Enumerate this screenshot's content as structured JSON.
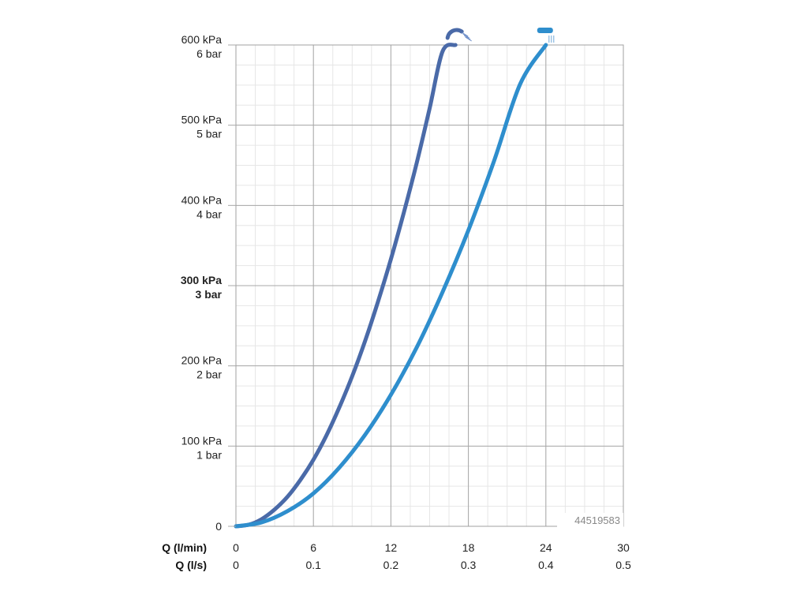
{
  "chart_data": {
    "type": "line",
    "id_label": "44519583",
    "x_axis": {
      "lim": [
        0,
        30
      ],
      "major_ticks": [
        0,
        6,
        12,
        18,
        24,
        30
      ],
      "minor_step": 1.5,
      "labels_primary": [
        "0",
        "6",
        "12",
        "18",
        "24",
        "30"
      ],
      "labels_secondary": [
        "0",
        "0.1",
        "0.2",
        "0.3",
        "0.4",
        "0.5"
      ],
      "title_primary": "Q (l/min)",
      "title_secondary": "Q (l/s)"
    },
    "y_axis": {
      "lim": [
        0,
        600
      ],
      "major_ticks": [
        0,
        100,
        200,
        300,
        400,
        500,
        600
      ],
      "minor_step": 25,
      "labels_primary": [
        "0",
        "100 kPa",
        "200 kPa",
        "300 kPa",
        "400 kPa",
        "500 kPa",
        "600 kPa"
      ],
      "labels_secondary": [
        "",
        "1 bar",
        "2 bar",
        "3 bar",
        "4 bar",
        "5 bar",
        "6 bar"
      ],
      "bold_tick": 300
    },
    "grid": true,
    "series": [
      {
        "icon": "rain-shower-head-icon",
        "color": "#4a6aa8",
        "x": [
          0,
          1,
          2,
          3,
          4,
          5,
          6,
          7,
          8,
          9,
          10,
          11,
          12,
          13,
          14,
          15,
          16,
          17
        ],
        "y": [
          0,
          2,
          9,
          21,
          37,
          58,
          83,
          113,
          148,
          187,
          231,
          280,
          333,
          391,
          453,
          521,
          592,
          600
        ]
      },
      {
        "icon": "hand-shower-icon",
        "color": "#2e8ecd",
        "x": [
          0,
          2,
          4,
          6,
          8,
          10,
          12,
          14,
          16,
          18,
          20,
          22,
          24
        ],
        "y": [
          0,
          5,
          19,
          41,
          73,
          114,
          164,
          223,
          292,
          369,
          456,
          551,
          600
        ]
      }
    ]
  }
}
